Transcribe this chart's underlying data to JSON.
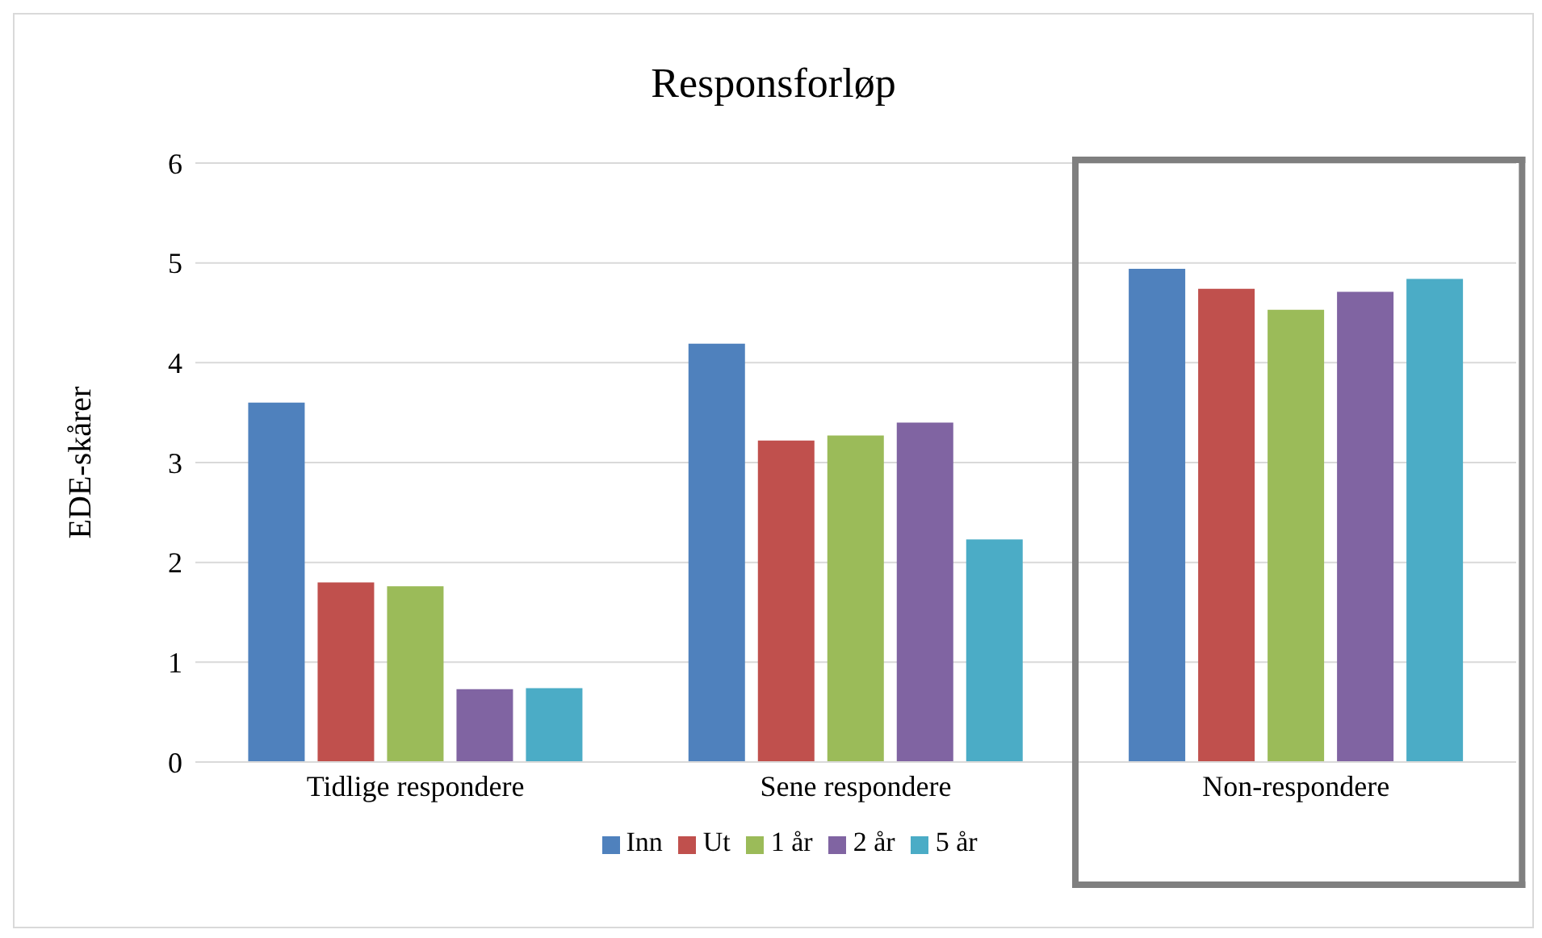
{
  "chart_data": {
    "type": "bar",
    "title": "Responsforløp",
    "ylabel": "EDE-skårer",
    "categories": [
      "Tidlige respondere",
      "Sene respondere",
      "Non-respondere"
    ],
    "series": [
      {
        "name": "Inn",
        "color": "#4f81bd",
        "values": [
          3.6,
          4.19,
          4.94
        ]
      },
      {
        "name": "Ut",
        "color": "#c0504d",
        "values": [
          1.8,
          3.22,
          4.74
        ]
      },
      {
        "name": "1 år",
        "color": "#9bbb59",
        "values": [
          1.76,
          3.27,
          4.53
        ]
      },
      {
        "name": "2 år",
        "color": "#8064a2",
        "values": [
          0.73,
          3.4,
          4.71
        ]
      },
      {
        "name": "5 år",
        "color": "#4bacc6",
        "values": [
          0.74,
          2.23,
          4.84
        ]
      }
    ],
    "ylim": [
      0,
      6
    ],
    "yticks": [
      0,
      1,
      2,
      3,
      4,
      5,
      6
    ],
    "grid": "y",
    "legend": "bottom"
  }
}
